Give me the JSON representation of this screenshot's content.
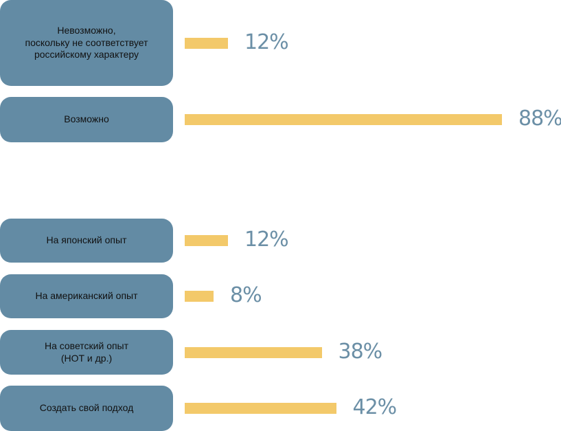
{
  "chart_data": [
    {
      "type": "bar",
      "categories": [
        "Невозможно,\nпоскольку не соответствует\nроссийскому характеру",
        "Возможно"
      ],
      "values": [
        12,
        88
      ],
      "value_labels": [
        "12%",
        "88%"
      ],
      "unit": "%"
    },
    {
      "type": "bar",
      "categories": [
        "На японский опыт",
        "На американский опыт",
        "На советский опыт\n(НОТ и др.)",
        "Создать свой подход"
      ],
      "values": [
        12,
        8,
        38,
        42
      ],
      "value_labels": [
        "12%",
        "8%",
        "38%",
        "42%"
      ],
      "unit": "%"
    }
  ],
  "colors": {
    "label_box": "#638ba4",
    "bar": "#f3c96a",
    "value_text": "#6b8fa6"
  }
}
